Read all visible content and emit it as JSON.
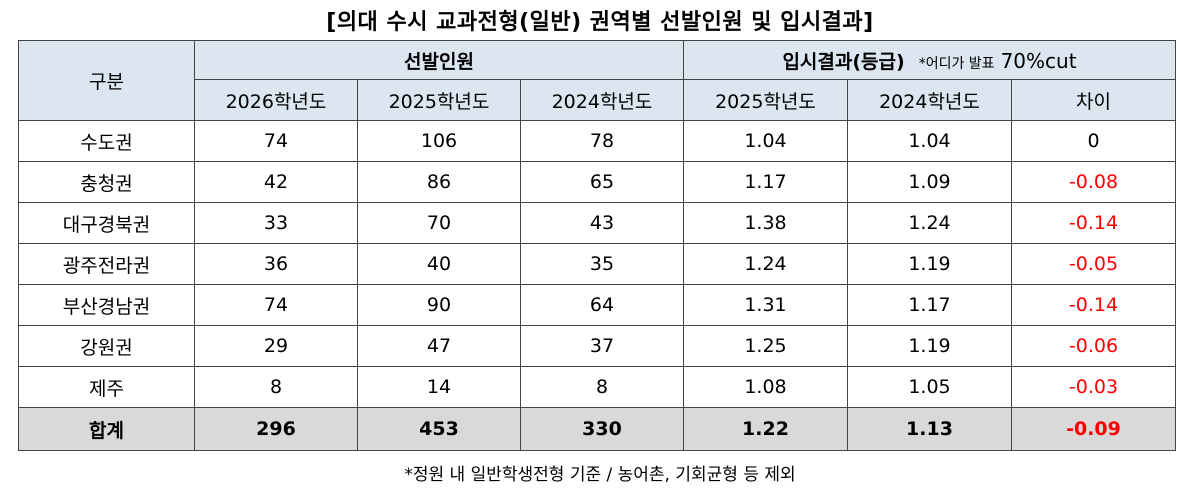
{
  "title": "[의대 수시 교과전형(일반) 권역별 선발인원 및 입시결과]",
  "header": {
    "category": "구분",
    "group_selection": "선발인원",
    "group_result": "입시결과(등급)",
    "result_note": "*어디가 발표",
    "result_note_cut": "70%cut",
    "columns": [
      "2026학년도",
      "2025학년도",
      "2024학년도",
      "2025학년도",
      "2024학년도",
      "차이"
    ]
  },
  "rows": [
    {
      "region": "수도권",
      "s2026": "74",
      "s2025": "106",
      "s2024": "78",
      "r2025": "1.04",
      "r2024": "1.04",
      "diff": "0",
      "neg": false
    },
    {
      "region": "충청권",
      "s2026": "42",
      "s2025": "86",
      "s2024": "65",
      "r2025": "1.17",
      "r2024": "1.09",
      "diff": "-0.08",
      "neg": true
    },
    {
      "region": "대구경북권",
      "s2026": "33",
      "s2025": "70",
      "s2024": "43",
      "r2025": "1.38",
      "r2024": "1.24",
      "diff": "-0.14",
      "neg": true
    },
    {
      "region": "광주전라권",
      "s2026": "36",
      "s2025": "40",
      "s2024": "35",
      "r2025": "1.24",
      "r2024": "1.19",
      "diff": "-0.05",
      "neg": true
    },
    {
      "region": "부산경남권",
      "s2026": "74",
      "s2025": "90",
      "s2024": "64",
      "r2025": "1.31",
      "r2024": "1.17",
      "diff": "-0.14",
      "neg": true
    },
    {
      "region": "강원권",
      "s2026": "29",
      "s2025": "47",
      "s2024": "37",
      "r2025": "1.25",
      "r2024": "1.19",
      "diff": "-0.06",
      "neg": true
    },
    {
      "region": "제주",
      "s2026": "8",
      "s2025": "14",
      "s2024": "8",
      "r2025": "1.08",
      "r2024": "1.05",
      "diff": "-0.03",
      "neg": true
    }
  ],
  "total": {
    "region": "합계",
    "s2026": "296",
    "s2025": "453",
    "s2024": "330",
    "r2025": "1.22",
    "r2024": "1.13",
    "diff": "-0.09"
  },
  "footnote": "*정원 내 일반학생전형 기준 / 농어촌, 기회균형 등 제외",
  "colors": {
    "header_bg": "#dce6f1",
    "total_bg": "#d9d9d9",
    "negative": "#ff0000"
  }
}
